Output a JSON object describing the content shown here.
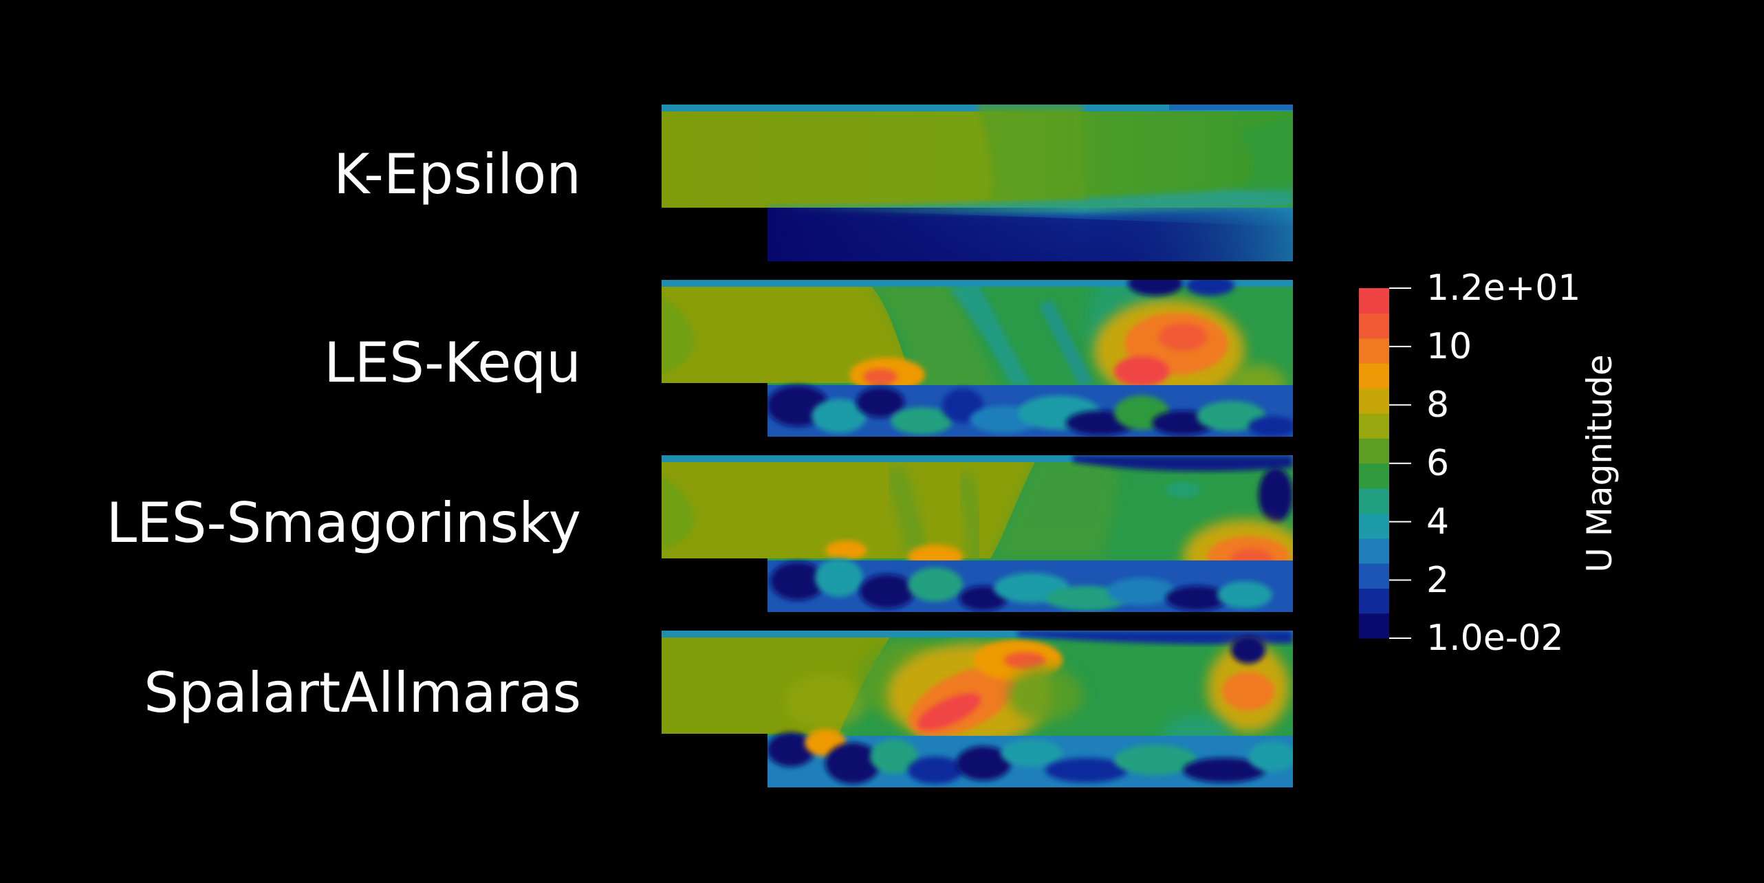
{
  "labels": {
    "k_epsilon": "K-Epsilon",
    "les_kequ": "LES-Kequ",
    "les_smagorinsky": "LES-Smagorinsky",
    "spalart_allmaras": "SpalartAllmaras"
  },
  "colorbar": {
    "title": "U Magnitude",
    "range": [
      0.01,
      12
    ],
    "ticks": [
      {
        "value": 12,
        "label": "1.2e+01"
      },
      {
        "value": 10,
        "label": "10"
      },
      {
        "value": 8,
        "label": "8"
      },
      {
        "value": 6,
        "label": "6"
      },
      {
        "value": 4,
        "label": "4"
      },
      {
        "value": 2,
        "label": "2"
      },
      {
        "value": 0.01,
        "label": "1.0e-02"
      }
    ],
    "colors": [
      "#0a0a6e",
      "#102a9c",
      "#1c55b4",
      "#1e7fba",
      "#1e9ba8",
      "#20a080",
      "#2f9a3e",
      "#5e9e24",
      "#98a80e",
      "#c6a608",
      "#ee9a06",
      "#f07a22",
      "#f05a34",
      "#f04444"
    ]
  },
  "background": "#000000"
}
